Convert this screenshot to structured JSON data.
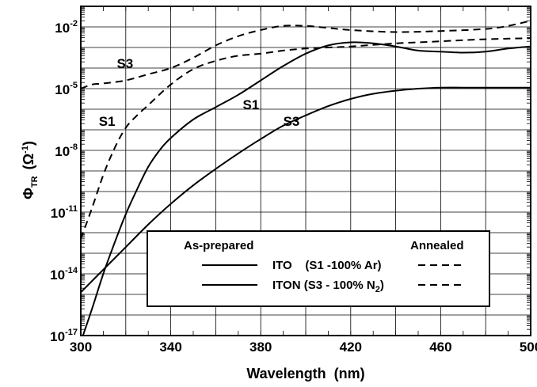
{
  "chart_data": {
    "type": "line",
    "title": "",
    "xlabel": "Wavelength  (nm)",
    "ylabel": {
      "main": "Φ",
      "sub": "TR",
      "unit_open": "(Ω",
      "unit_sup": "-1",
      "unit_close": ")"
    },
    "xlim": [
      300,
      500
    ],
    "ylim_log10": [
      -17,
      -1
    ],
    "y_scale": "log",
    "grid": true,
    "x_ticks": [
      {
        "value": 300,
        "label": "300"
      },
      {
        "value": 340,
        "label": "340"
      },
      {
        "value": 380,
        "label": "380"
      },
      {
        "value": 420,
        "label": "420"
      },
      {
        "value": 460,
        "label": "460"
      },
      {
        "value": 500,
        "label": "500"
      }
    ],
    "y_ticks": [
      {
        "value": -17,
        "base": "10",
        "exp": "-17"
      },
      {
        "value": -14,
        "base": "10",
        "exp": "-14"
      },
      {
        "value": -11,
        "base": "10",
        "exp": "-11"
      },
      {
        "value": -8,
        "base": "10",
        "exp": "-8"
      },
      {
        "value": -5,
        "base": "10",
        "exp": "-5"
      },
      {
        "value": -2,
        "base": "10",
        "exp": "-2"
      }
    ],
    "series": [
      {
        "id": "s1-as-prepared",
        "style": "solid",
        "x": [
          300,
          305,
          310,
          315,
          320,
          325,
          330,
          335,
          340,
          350,
          360,
          370,
          380,
          390,
          400,
          410,
          420,
          430,
          440,
          450,
          460,
          470,
          480,
          490,
          500
        ],
        "log10_y": [
          -17.3,
          -15.7,
          -14.0,
          -12.5,
          -11.1,
          -9.9,
          -8.8,
          -8.0,
          -7.4,
          -6.5,
          -5.9,
          -5.3,
          -4.6,
          -3.9,
          -3.3,
          -2.9,
          -2.75,
          -2.8,
          -2.95,
          -3.15,
          -3.2,
          -3.25,
          -3.2,
          -3.05,
          -2.95
        ]
      },
      {
        "id": "s3-as-prepared",
        "style": "solid",
        "x": [
          300,
          310,
          320,
          330,
          340,
          350,
          360,
          370,
          380,
          390,
          400,
          410,
          420,
          430,
          440,
          450,
          460,
          470,
          480,
          490,
          500
        ],
        "log10_y": [
          -14.9,
          -13.8,
          -12.7,
          -11.6,
          -10.6,
          -9.7,
          -8.9,
          -8.15,
          -7.45,
          -6.8,
          -6.3,
          -5.85,
          -5.5,
          -5.25,
          -5.1,
          -5.0,
          -4.95,
          -4.95,
          -4.95,
          -4.95,
          -4.95
        ]
      },
      {
        "id": "s1-annealed",
        "style": "dashed",
        "x": [
          300,
          305,
          310,
          315,
          320,
          325,
          330,
          340,
          350,
          360,
          370,
          380,
          390,
          400,
          410,
          420,
          440,
          460,
          480,
          500
        ],
        "log10_y": [
          -12.3,
          -10.8,
          -9.2,
          -7.9,
          -6.9,
          -6.3,
          -5.8,
          -4.8,
          -4.05,
          -3.65,
          -3.4,
          -3.3,
          -3.15,
          -3.05,
          -3.0,
          -2.95,
          -2.8,
          -2.7,
          -2.6,
          -2.55
        ]
      },
      {
        "id": "s3-annealed",
        "style": "dashed",
        "x": [
          300,
          305,
          310,
          320,
          330,
          340,
          350,
          360,
          370,
          380,
          390,
          400,
          410,
          420,
          440,
          460,
          480,
          490,
          500
        ],
        "log10_y": [
          -5.0,
          -4.8,
          -4.75,
          -4.6,
          -4.3,
          -4.0,
          -3.5,
          -2.9,
          -2.45,
          -2.15,
          -1.95,
          -1.95,
          -2.05,
          -2.15,
          -2.25,
          -2.2,
          -2.1,
          -1.95,
          -1.7
        ]
      }
    ],
    "annotations": [
      {
        "text": "S3",
        "x": 316,
        "log10_y": -4.0
      },
      {
        "text": "S1",
        "x": 308,
        "log10_y": -6.8
      },
      {
        "text": "S1",
        "x": 372,
        "log10_y": -6.0
      },
      {
        "text": "S3",
        "x": 390,
        "log10_y": -6.8
      }
    ],
    "legend": {
      "placement": "center-right",
      "as_prepared": "As-prepared",
      "annealed": "Annealed",
      "row1": "ITO    (S1 -100% Ar)",
      "row2_main": "ITON (S3 - 100% N",
      "row2_sub": "2",
      "row2_close": ")"
    }
  }
}
